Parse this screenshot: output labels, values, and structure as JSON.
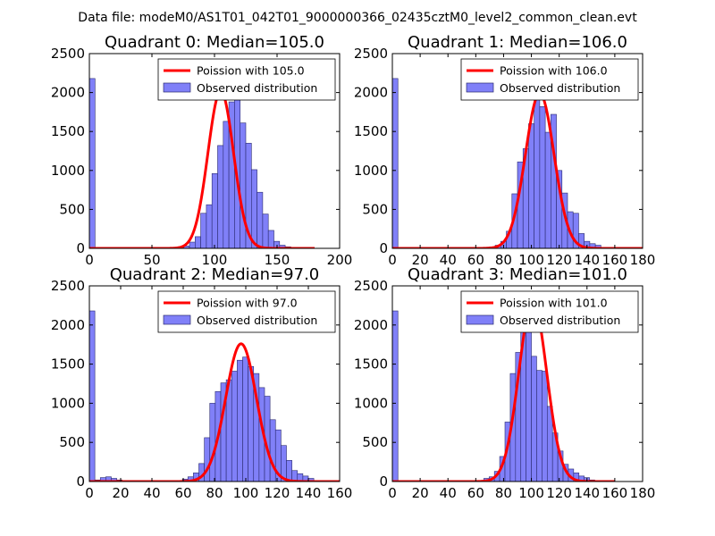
{
  "figure": {
    "suptitle": "Data file: modeM0/AS1T01_042T01_9000000366_02435cztM0_level2_common_clean.evt"
  },
  "colors": {
    "hist_fill": "#8080f8",
    "hist_edge": "#2a2a70",
    "fit_line": "#ff0000",
    "axes": "#000000"
  },
  "chart_data": [
    {
      "type": "bar",
      "title": "Quadrant 0: Median=105.0",
      "xlim": [
        0,
        200
      ],
      "ylim": [
        0,
        2500
      ],
      "xticks": [
        0,
        50,
        100,
        150,
        200
      ],
      "yticks": [
        0,
        500,
        1000,
        1500,
        2000,
        2500
      ],
      "legend": {
        "placement": "top-right",
        "entries": [
          "Poission with 105.0",
          "Observed distribution"
        ]
      },
      "histogram": {
        "bin_start": 0,
        "bin_width": 4.5,
        "counts": [
          2180,
          0,
          0,
          0,
          0,
          0,
          0,
          0,
          0,
          0,
          0,
          0,
          0,
          0,
          0,
          0,
          0,
          0,
          0,
          0,
          0,
          0,
          0,
          0,
          0,
          0,
          0,
          0,
          0,
          0,
          0,
          0,
          0,
          0,
          0,
          0,
          0,
          0,
          0,
          0
        ]
      },
      "histogram_main": {
        "bin_start": 71,
        "bin_width": 4.5,
        "counts": [
          5,
          30,
          80,
          150,
          450,
          560,
          960,
          1320,
          1630,
          1880,
          2040,
          1610,
          1350,
          1010,
          720,
          440,
          230,
          90,
          40,
          20,
          10,
          5
        ]
      },
      "poisson_fit": {
        "mean": 105.0,
        "peak": 2020,
        "x_range": [
          0,
          180
        ]
      }
    },
    {
      "type": "bar",
      "title": "Quadrant 1: Median=106.0",
      "xlim": [
        0,
        180
      ],
      "ylim": [
        0,
        2500
      ],
      "xticks": [
        0,
        20,
        40,
        60,
        80,
        100,
        120,
        140,
        160,
        180
      ],
      "yticks": [
        0,
        500,
        1000,
        1500,
        2000,
        2500
      ],
      "legend": {
        "placement": "top-right",
        "entries": [
          "Poission with 106.0",
          "Observed distribution"
        ]
      },
      "histogram": {
        "bin_start": 0,
        "bin_width": 4,
        "counts": [
          2180
        ]
      },
      "histogram_main": {
        "bin_start": 66,
        "bin_width": 4,
        "counts": [
          5,
          20,
          40,
          90,
          220,
          700,
          1110,
          1280,
          1600,
          1940,
          1820,
          1490,
          1720,
          1000,
          710,
          470,
          450,
          190,
          90,
          60,
          40,
          5
        ]
      },
      "poisson_fit": {
        "mean": 106.0,
        "peak": 1990,
        "x_range": [
          0,
          180
        ]
      }
    },
    {
      "type": "bar",
      "title": "Quadrant 2: Median=97.0",
      "xlim": [
        0,
        160
      ],
      "ylim": [
        0,
        2500
      ],
      "xticks": [
        0,
        20,
        40,
        60,
        80,
        100,
        120,
        140,
        160
      ],
      "yticks": [
        0,
        500,
        1000,
        1500,
        2000,
        2500
      ],
      "legend": {
        "placement": "top-right",
        "entries": [
          "Poission with 97.0",
          "Observed distribution"
        ]
      },
      "histogram": {
        "bin_start": 0,
        "bin_width": 3.5,
        "counts": [
          2180,
          20,
          50,
          60,
          40,
          20
        ]
      },
      "histogram_main": {
        "bin_start": 56,
        "bin_width": 3.5,
        "counts": [
          10,
          30,
          60,
          110,
          230,
          560,
          1000,
          1150,
          1260,
          1300,
          1410,
          1550,
          1590,
          1470,
          1380,
          1200,
          1090,
          790,
          660,
          460,
          270,
          140,
          100,
          70,
          40,
          10
        ]
      },
      "poisson_fit": {
        "mean": 97.0,
        "peak": 1760,
        "x_range": [
          0,
          160
        ]
      }
    },
    {
      "type": "bar",
      "title": "Quadrant 3: Median=101.0",
      "xlim": [
        0,
        180
      ],
      "ylim": [
        0,
        2500
      ],
      "xticks": [
        0,
        20,
        40,
        60,
        80,
        100,
        120,
        140,
        160,
        180
      ],
      "yticks": [
        0,
        500,
        1000,
        1500,
        2000,
        2500
      ],
      "legend": {
        "placement": "top-right",
        "entries": [
          "Poission with 101.0",
          "Observed distribution"
        ]
      },
      "histogram": {
        "bin_start": 0,
        "bin_width": 4,
        "counts": [
          2180
        ]
      },
      "histogram_main": {
        "bin_start": 62,
        "bin_width": 3.8,
        "counts": [
          10,
          40,
          60,
          130,
          320,
          760,
          1380,
          1650,
          1920,
          2330,
          1600,
          1420,
          1410,
          960,
          620,
          390,
          220,
          160,
          110,
          70,
          50,
          20
        ]
      },
      "poisson_fit": {
        "mean": 101.0,
        "peak": 2300,
        "x_range": [
          0,
          160
        ]
      }
    }
  ]
}
